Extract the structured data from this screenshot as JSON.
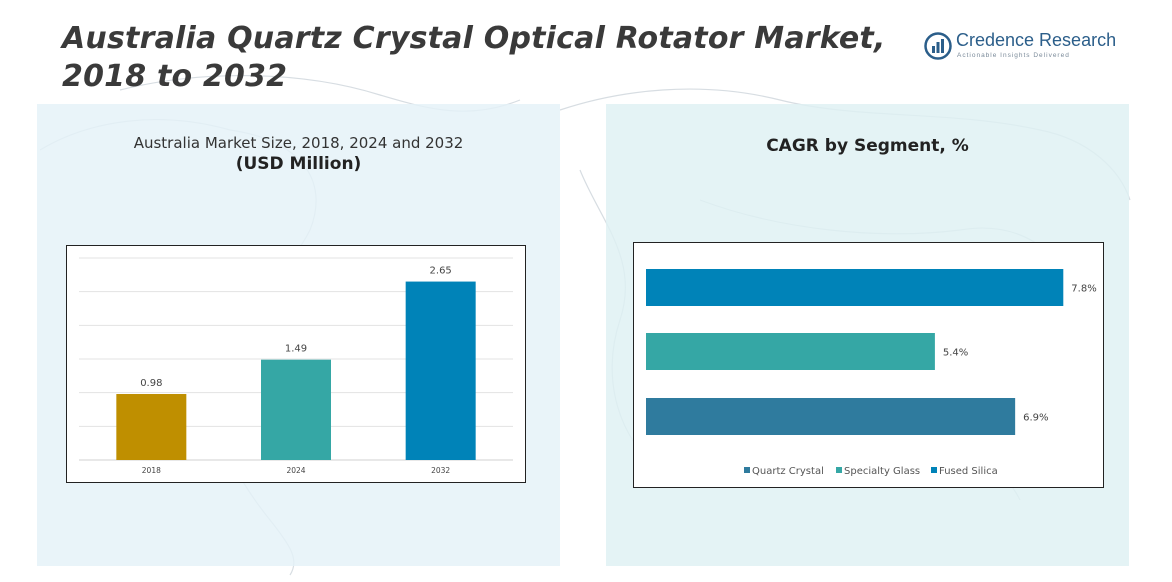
{
  "header": {
    "title": "Australia Quartz Crystal Optical Rotator Market, 2018 to 2032",
    "logo_name": "Credence Research",
    "logo_tagline": "Actionable Insights Delivered"
  },
  "left_panel": {
    "subtitle": "Australia Market Size, 2018, 2024 and 2032",
    "unit": "(USD Million)"
  },
  "right_panel": {
    "title": "CAGR by Segment, %"
  },
  "colors": {
    "bar_2018": "#BF8F00",
    "bar_2024": "#35A7A5",
    "bar_2032": "#0083B8",
    "quartz_crystal": "#2F7B9E",
    "specialty_glass": "#35A7A5",
    "fused_silica": "#0083B8"
  },
  "chart_data": [
    {
      "type": "bar",
      "title": "Australia Market Size, 2018, 2024 and 2032",
      "ylabel": "(USD Million)",
      "categories": [
        "2018",
        "2024",
        "2032"
      ],
      "values": [
        0.98,
        1.49,
        2.65
      ],
      "data_labels": [
        "0.98",
        "1.49",
        "2.65"
      ],
      "ylim": [
        0,
        3.0
      ],
      "grid": true
    },
    {
      "type": "bar",
      "orientation": "horizontal",
      "title": "CAGR by Segment, %",
      "categories": [
        "Fused Silica",
        "Specialty Glass",
        "Quartz Crystal"
      ],
      "values": [
        7.8,
        5.4,
        6.9
      ],
      "data_labels": [
        "7.8%",
        "5.4%",
        "6.9%"
      ],
      "xlim": [
        0,
        8.0
      ],
      "legend": [
        "Quartz Crystal",
        "Specialty Glass",
        "Fused Silica"
      ],
      "legend_position": "bottom"
    }
  ]
}
